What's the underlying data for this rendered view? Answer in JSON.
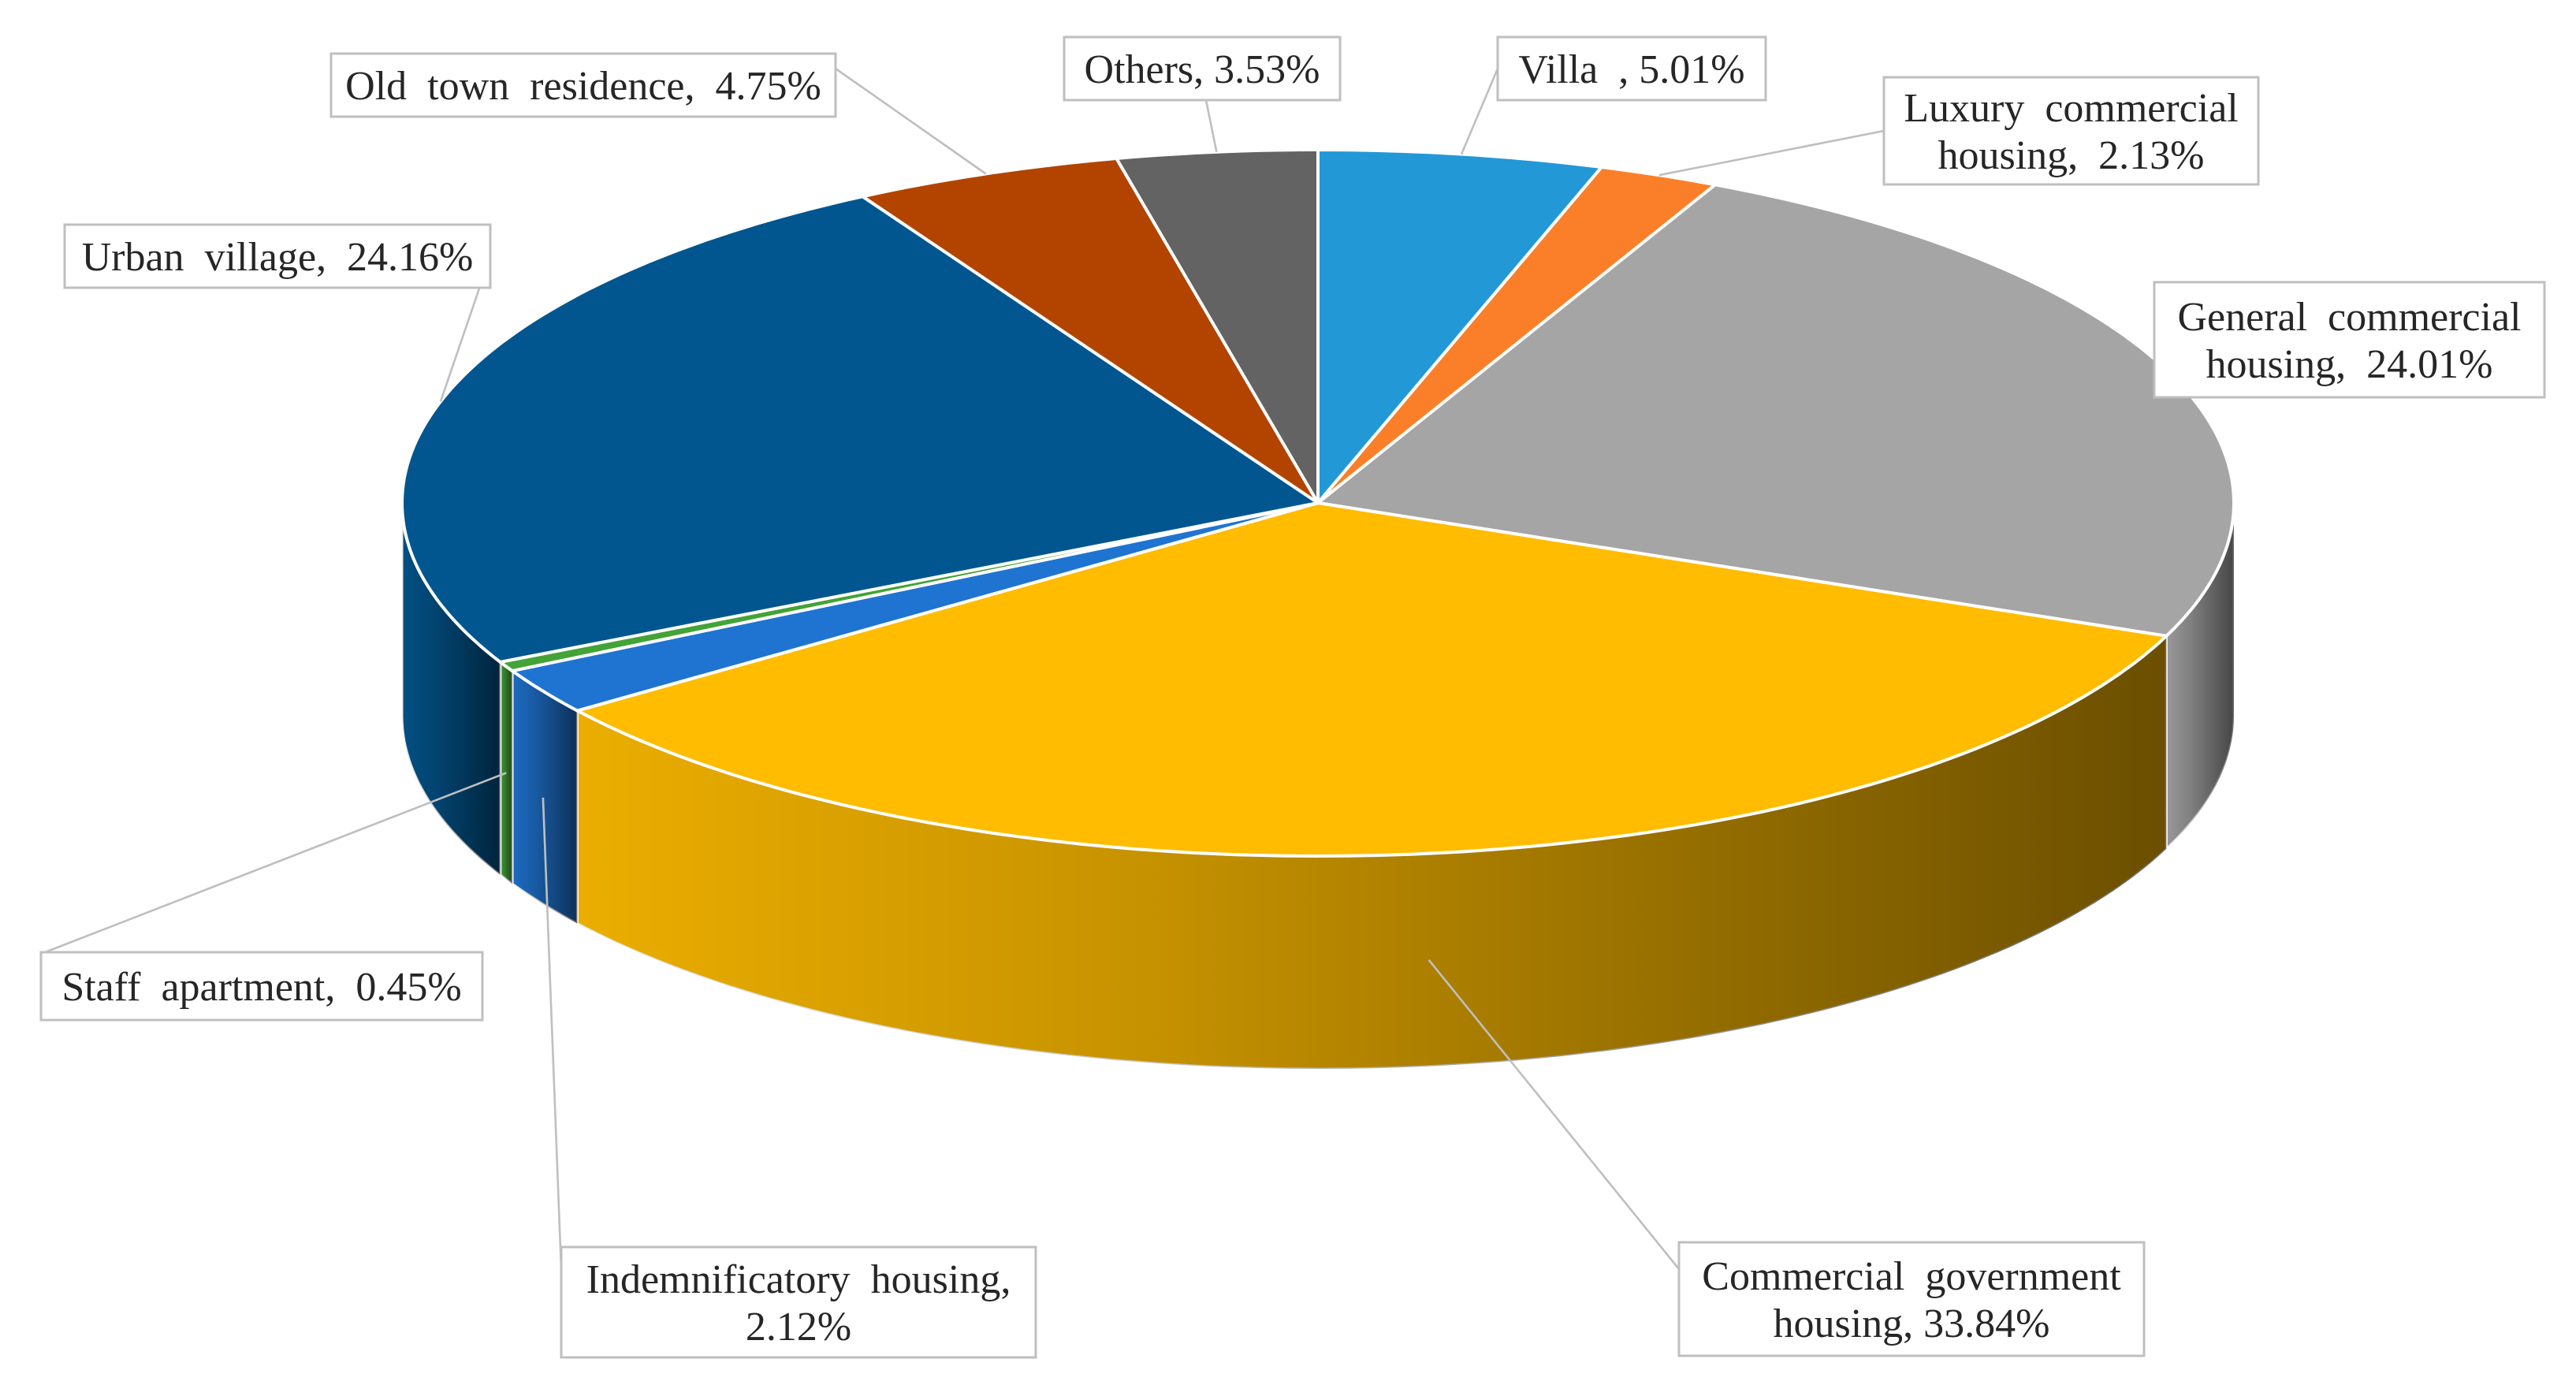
{
  "chart_data": {
    "type": "pie",
    "style": "3d",
    "series": [
      {
        "values": [
          5.01,
          2.13,
          24.01,
          33.84,
          2.12,
          0.45,
          24.16,
          4.75,
          3.53
        ],
        "categories": [
          "Villa",
          "Luxury commercial housing",
          "General commercial housing",
          "Commercial government housing",
          "Indemnificatory housing",
          "Staff apartment",
          "Urban village",
          "Old town residence",
          "Others"
        ]
      }
    ],
    "slices": [
      {
        "name": "Villa",
        "value": 5.01,
        "color": "#2398d6",
        "label": [
          "Villa  , 5.01%"
        ]
      },
      {
        "name": "Luxury commercial housing",
        "value": 2.13,
        "color": "#fb7f28",
        "label": [
          "Luxury  commercial",
          "housing,  2.13%"
        ]
      },
      {
        "name": "General commercial housing",
        "value": 24.01,
        "color": "#a5a5a5",
        "label": [
          "General  commercial",
          "housing,  24.01%"
        ]
      },
      {
        "name": "Commercial government housing",
        "value": 33.84,
        "color": "#ffbc00",
        "label": [
          "Commercial  government",
          "housing, 33.84%"
        ]
      },
      {
        "name": "Indemnificatory housing",
        "value": 2.12,
        "color": "#1f74d1",
        "label": [
          "Indemnificatory  housing,",
          "2.12%"
        ]
      },
      {
        "name": "Staff apartment",
        "value": 0.45,
        "color": "#43a337",
        "label": [
          "Staff  apartment,  0.45%"
        ]
      },
      {
        "name": "Urban village",
        "value": 24.16,
        "color": "#02568f",
        "label": [
          "Urban  village,  24.16%"
        ]
      },
      {
        "name": "Old town residence",
        "value": 4.75,
        "color": "#b34400",
        "label": [
          "Old  town  residence,  4.75%"
        ]
      },
      {
        "name": "Others",
        "value": 3.53,
        "color": "#636363",
        "label": [
          "Others, 3.53%"
        ]
      }
    ],
    "start": "12 o'clock",
    "direction": "clockwise",
    "legend": "none",
    "data_labels": "callouts with leader lines"
  }
}
